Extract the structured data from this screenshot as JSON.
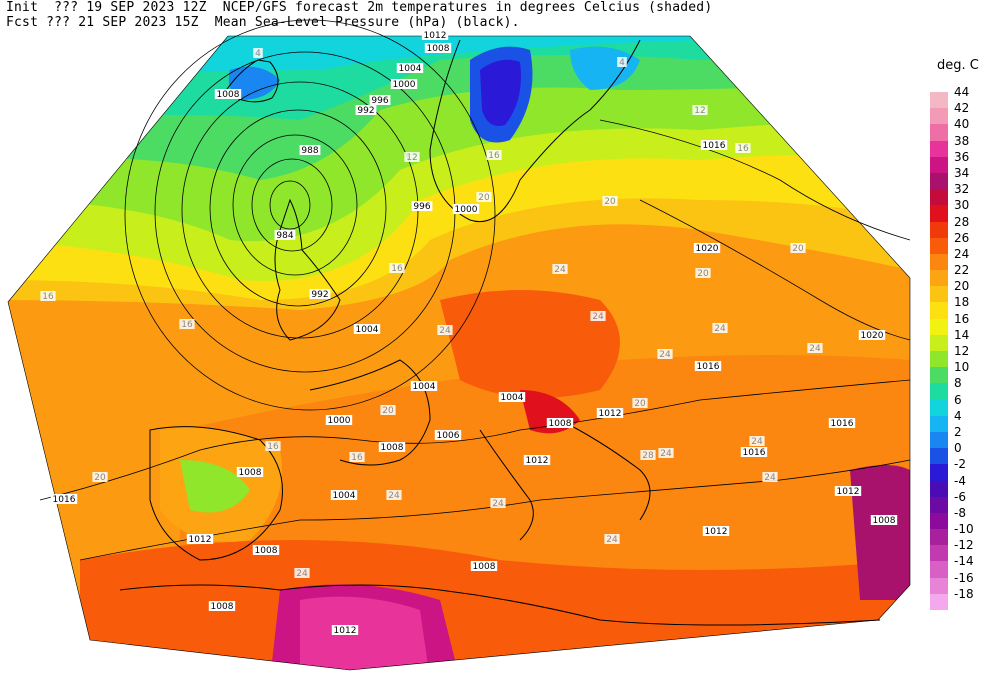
{
  "header": {
    "line1": "Init  ??? 19 SEP 2023 12Z  NCEP/GFS forecast 2m temperatures in degrees Celcius (shaded)",
    "line2": "Fcst ??? 21 SEP 2023 15Z  Mean Sea-Level Pressure (hPa) (black)."
  },
  "legend": {
    "title": "deg. C",
    "levels": [
      {
        "label": "44",
        "color": "#f4b8c4"
      },
      {
        "label": "42",
        "color": "#f29ab6"
      },
      {
        "label": "40",
        "color": "#ee6ea6"
      },
      {
        "label": "38",
        "color": "#e8339a"
      },
      {
        "label": "36",
        "color": "#cc1484"
      },
      {
        "label": "34",
        "color": "#a8126c"
      },
      {
        "label": "32",
        "color": "#c40c3c"
      },
      {
        "label": "30",
        "color": "#e0101c"
      },
      {
        "label": "28",
        "color": "#f03a0c"
      },
      {
        "label": "26",
        "color": "#f85c0a"
      },
      {
        "label": "24",
        "color": "#fb8610"
      },
      {
        "label": "22",
        "color": "#fca412"
      },
      {
        "label": "20",
        "color": "#fcc412"
      },
      {
        "label": "18",
        "color": "#fce012"
      },
      {
        "label": "16",
        "color": "#f2f212"
      },
      {
        "label": "14",
        "color": "#c8ee1c"
      },
      {
        "label": "12",
        "color": "#8fe62a"
      },
      {
        "label": "10",
        "color": "#4cdc64"
      },
      {
        "label": "8",
        "color": "#1edca0"
      },
      {
        "label": "6",
        "color": "#12d4dc"
      },
      {
        "label": "4",
        "color": "#16b4f2"
      },
      {
        "label": "2",
        "color": "#1a86f2"
      },
      {
        "label": "0",
        "color": "#1a52e6"
      },
      {
        "label": "-2",
        "color": "#2a1ad8"
      },
      {
        "label": "-4",
        "color": "#4a0cb4"
      },
      {
        "label": "-6",
        "color": "#6c0aa4"
      },
      {
        "label": "-8",
        "color": "#8c0a9c"
      },
      {
        "label": "-10",
        "color": "#a8209c"
      },
      {
        "label": "-12",
        "color": "#c23ab0"
      },
      {
        "label": "-14",
        "color": "#d860c4"
      },
      {
        "label": "-16",
        "color": "#e884d8"
      },
      {
        "label": "-18",
        "color": "#f4a8ee"
      }
    ]
  },
  "map": {
    "isobar_labels": [
      "1012",
      "1008",
      "1004",
      "1000",
      "996",
      "992",
      "988",
      "984",
      "992",
      "996",
      "1000",
      "1008",
      "1016",
      "1020",
      "1016",
      "1020",
      "1016",
      "1016",
      "1012",
      "1008",
      "1012",
      "1004",
      "1008",
      "1004",
      "1000",
      "1004",
      "1008",
      "1008",
      "1016",
      "1008",
      "1012",
      "1008",
      "1012",
      "1012",
      "1008",
      "1012",
      "1004",
      "1006"
    ],
    "temperature_labels": [
      "4",
      "4",
      "12",
      "12",
      "16",
      "20",
      "16",
      "20",
      "24",
      "24",
      "24",
      "20",
      "20",
      "16",
      "16",
      "24",
      "24",
      "20",
      "24",
      "24",
      "24",
      "28",
      "24",
      "24",
      "24",
      "24",
      "20",
      "16",
      "16",
      "20",
      "24",
      "16"
    ],
    "colors": {
      "background": "#ffffff",
      "isobar": "#000000",
      "coast": "#000000",
      "border": "#333333"
    }
  }
}
